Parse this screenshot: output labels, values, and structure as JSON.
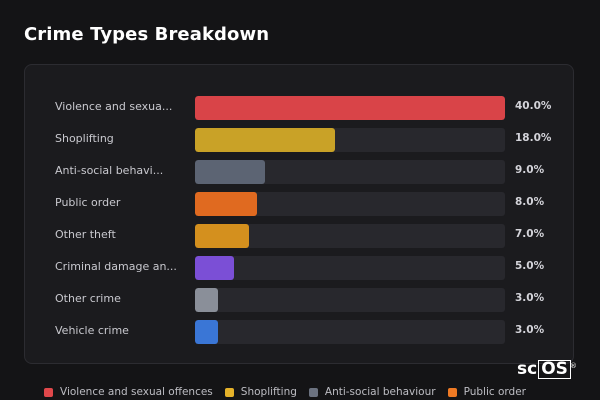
{
  "title": "Crime Types Breakdown",
  "chart_data": {
    "type": "bar",
    "orientation": "horizontal",
    "title": "Crime Types Breakdown",
    "xlim": [
      0,
      40
    ],
    "categories": [
      "Violence and sexua...",
      "Shoplifting",
      "Anti-social behavi...",
      "Public order",
      "Other theft",
      "Criminal damage an...",
      "Other crime",
      "Vehicle crime"
    ],
    "values": [
      40.0,
      18.0,
      9.0,
      8.0,
      7.0,
      5.0,
      3.0,
      3.0
    ],
    "value_labels": [
      "40.0%",
      "18.0%",
      "9.0%",
      "8.0%",
      "7.0%",
      "5.0%",
      "3.0%",
      "3.0%"
    ],
    "colors": [
      "#d94448",
      "#c9a227",
      "#5c6473",
      "#e06a20",
      "#d4901e",
      "#7b4fd6",
      "#8a8f99",
      "#3a76d6"
    ],
    "legend_placement": "bottom",
    "legend": [
      {
        "label": "Violence and sexual offences",
        "color": "#e0484b"
      },
      {
        "label": "Shoplifting",
        "color": "#e5b22a"
      },
      {
        "label": "Anti-social behaviour",
        "color": "#6b7280"
      },
      {
        "label": "Public order",
        "color": "#ef7a24"
      }
    ]
  },
  "logo": {
    "text_plain": "sc",
    "text_boxed": "OS",
    "mark": "®"
  }
}
